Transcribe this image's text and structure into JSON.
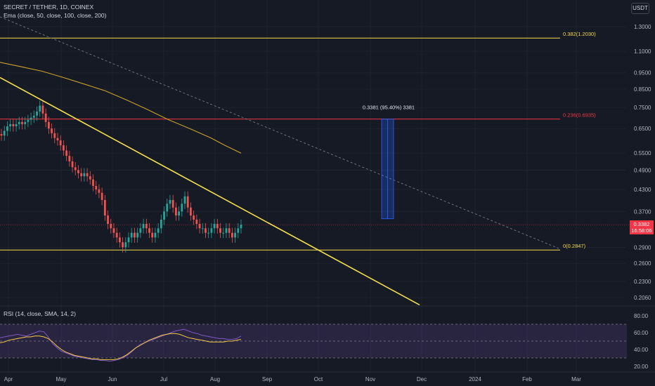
{
  "header": {
    "symbol_line": "SECRET / TETHER, 1D, COINEX",
    "ema_line": "Ema (close, 50, close, 100, close, 200)",
    "rsi_line": "RSI (14, close, SMA, 14, 2)",
    "currency": "USDT"
  },
  "colors": {
    "background": "#161a25",
    "fib_line": "#f7d94a",
    "fib_red": "#f23645",
    "trendline": "#f7e04a",
    "ema": "#c9a227",
    "up_candle": "#26a69a",
    "down_candle": "#ef5350",
    "rsi_fill": "#7e57c2",
    "measure_box": "#2962ff"
  },
  "price_badge": {
    "value": "0.3382",
    "countdown": "16:58:06"
  },
  "measure_label": "0.3381 (95.40%) 3381",
  "chart_data": [
    {
      "type": "candlestick",
      "title": "SECRET / TETHER, 1D, COINEX",
      "y_scale": "log",
      "ylim": [
        0.19,
        1.4
      ],
      "y_ticks": [
        "1.3000",
        "1.1000",
        "0.9500",
        "0.8500",
        "0.7500",
        "0.6500",
        "0.5500",
        "0.4900",
        "0.4300",
        "0.3700",
        "0.3382",
        "0.2900",
        "0.2600",
        "0.2300",
        "0.2060"
      ],
      "x_ticks": [
        "Apr",
        "May",
        "Jun",
        "Jul",
        "Aug",
        "Sep",
        "Oct",
        "Nov",
        "Dec",
        "2024",
        "Feb",
        "Mar"
      ],
      "close_approx": [
        0.62,
        0.64,
        0.66,
        0.67,
        0.66,
        0.67,
        0.68,
        0.67,
        0.68,
        0.69,
        0.7,
        0.71,
        0.73,
        0.76,
        0.72,
        0.68,
        0.65,
        0.63,
        0.61,
        0.6,
        0.58,
        0.56,
        0.54,
        0.52,
        0.5,
        0.49,
        0.48,
        0.47,
        0.48,
        0.47,
        0.46,
        0.44,
        0.43,
        0.42,
        0.4,
        0.36,
        0.34,
        0.33,
        0.32,
        0.31,
        0.3,
        0.29,
        0.3,
        0.31,
        0.32,
        0.31,
        0.32,
        0.33,
        0.34,
        0.33,
        0.32,
        0.31,
        0.32,
        0.33,
        0.35,
        0.37,
        0.39,
        0.4,
        0.38,
        0.36,
        0.37,
        0.39,
        0.41,
        0.38,
        0.36,
        0.35,
        0.34,
        0.33,
        0.33,
        0.32,
        0.32,
        0.33,
        0.34,
        0.33,
        0.32,
        0.32,
        0.33,
        0.32,
        0.31,
        0.32,
        0.33,
        0.3382
      ],
      "fib_levels": [
        {
          "label": "0.382(1.2030)",
          "price": 1.203,
          "color": "#f7d94a"
        },
        {
          "label": "0.236(0.6935)",
          "price": 0.6935,
          "color": "#f23645"
        },
        {
          "label": "0(0.2847)",
          "price": 0.2847,
          "color": "#f7d94a"
        }
      ],
      "trendline": {
        "start": 0.92,
        "end": 0.196
      },
      "ema_200": [
        1.02,
        0.99,
        0.96,
        0.92,
        0.88,
        0.84,
        0.79,
        0.74,
        0.69,
        0.65,
        0.61,
        0.58,
        0.55
      ]
    },
    {
      "type": "line",
      "title": "RSI (14, close, SMA, 14, 2)",
      "ylim": [
        20,
        80
      ],
      "y_ticks": [
        "80.00",
        "60.00",
        "40.00",
        "20.00"
      ],
      "bands": [
        70,
        50,
        30
      ],
      "rsi": [
        54,
        55,
        56,
        57,
        58,
        57,
        56,
        58,
        60,
        62,
        61,
        55,
        47,
        42,
        38,
        36,
        34,
        32,
        31,
        30,
        29,
        28,
        28,
        27,
        27,
        26,
        27,
        28,
        30,
        33,
        37,
        42,
        46,
        48,
        50,
        52,
        54,
        56,
        58,
        60,
        62,
        63,
        64,
        62,
        60,
        59,
        57,
        56,
        55,
        54,
        53,
        53,
        52,
        52,
        53,
        56
      ],
      "rsi_ma": [
        48,
        49,
        51,
        52,
        53,
        54,
        55,
        55,
        56,
        56,
        55,
        53,
        49,
        44,
        40,
        37,
        35,
        33,
        32,
        31,
        30,
        29,
        29,
        28,
        28,
        28,
        28,
        29,
        31,
        34,
        38,
        42,
        45,
        48,
        51,
        53,
        55,
        57,
        58,
        59,
        59,
        58,
        56,
        54,
        53,
        52,
        51,
        50,
        49,
        49,
        49,
        49,
        50,
        50,
        51,
        52
      ]
    }
  ]
}
